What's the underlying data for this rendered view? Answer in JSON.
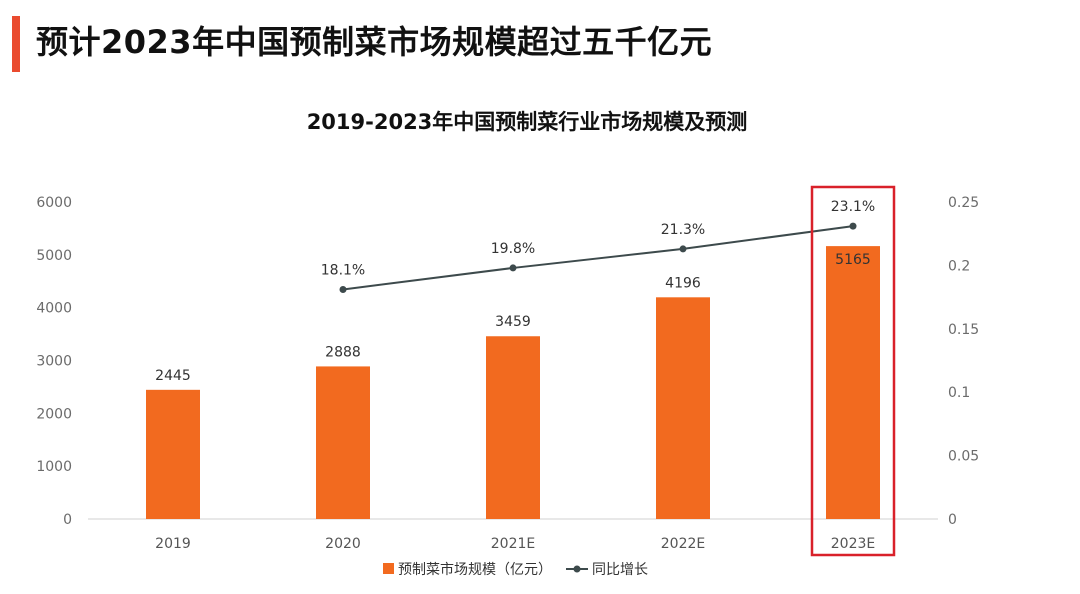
{
  "header": {
    "title": "预计2023年中国预制菜市场规模超过五千亿元"
  },
  "colors": {
    "accent": "#ea4b2f",
    "bar": "#f26a1f",
    "line": "#3d4a4c",
    "highlight": "#d9212a"
  },
  "chart_data": {
    "type": "bar+line",
    "title": "2019-2023年中国预制菜行业市场规模及预测",
    "categories": [
      "2019",
      "2020",
      "2021E",
      "2022E",
      "2023E"
    ],
    "series": [
      {
        "name": "预制菜市场规模（亿元）",
        "type": "bar",
        "axis": "left",
        "values": [
          2445,
          2888,
          3459,
          4196,
          5165
        ],
        "labels": [
          "2445",
          "2888",
          "3459",
          "4196",
          "5165"
        ]
      },
      {
        "name": "同比增长",
        "type": "line",
        "axis": "right",
        "values": [
          null,
          0.181,
          0.198,
          0.213,
          0.231
        ],
        "labels": [
          "",
          "18.1%",
          "19.8%",
          "21.3%",
          "23.1%"
        ]
      }
    ],
    "y_left": {
      "min": 0,
      "max": 6000,
      "ticks": [
        "0",
        "1000",
        "2000",
        "3000",
        "4000",
        "5000",
        "6000"
      ]
    },
    "y_right": {
      "min": 0,
      "max": 0.25,
      "ticks": [
        "0",
        "0.05",
        "0.1",
        "0.15",
        "0.2",
        "0.25"
      ]
    },
    "grid": false,
    "legend_position": "bottom",
    "highlight_category": "2023E"
  }
}
